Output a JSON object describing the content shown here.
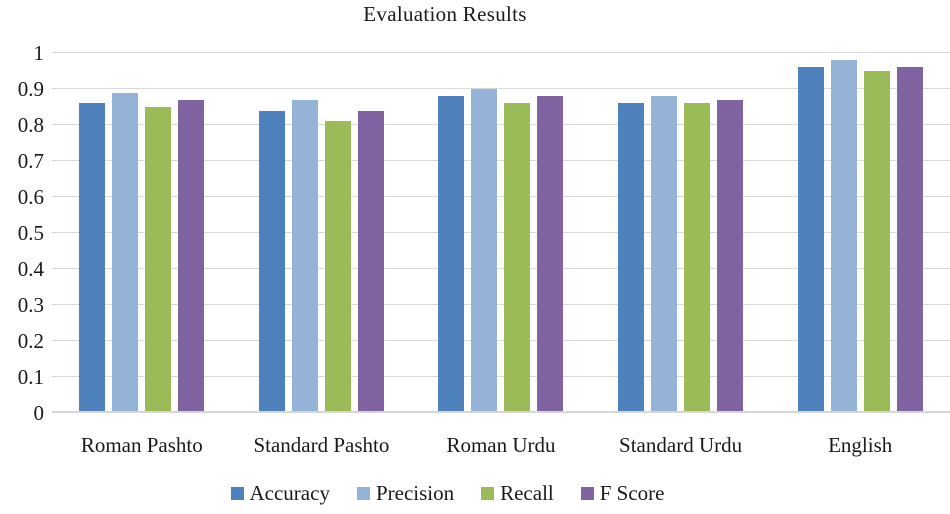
{
  "chart_data": {
    "type": "bar",
    "title": "Evaluation Results",
    "categories": [
      "Roman Pashto",
      "Standard Pashto",
      "Roman Urdu",
      "Standard Urdu",
      "English"
    ],
    "series": [
      {
        "name": "Accuracy",
        "color": "#4F81BD",
        "values": [
          0.86,
          0.84,
          0.88,
          0.86,
          0.96
        ]
      },
      {
        "name": "Precision",
        "color": "#95B3D7",
        "values": [
          0.89,
          0.87,
          0.9,
          0.88,
          0.98
        ]
      },
      {
        "name": "Recall",
        "color": "#9BBB59",
        "values": [
          0.85,
          0.81,
          0.86,
          0.86,
          0.95
        ]
      },
      {
        "name": "F Score",
        "color": "#8064A2",
        "values": [
          0.87,
          0.84,
          0.88,
          0.87,
          0.96
        ]
      }
    ],
    "ylim": [
      0,
      1
    ],
    "yticks": [
      "0",
      "0.1",
      "0.2",
      "0.3",
      "0.4",
      "0.5",
      "0.6",
      "0.7",
      "0.8",
      "0.9",
      "1"
    ],
    "grid": true,
    "gridline_color": "#D9D9D9",
    "text_color": "#1A1A1A",
    "legend_position": "bottom",
    "xlabel": "",
    "ylabel": ""
  }
}
